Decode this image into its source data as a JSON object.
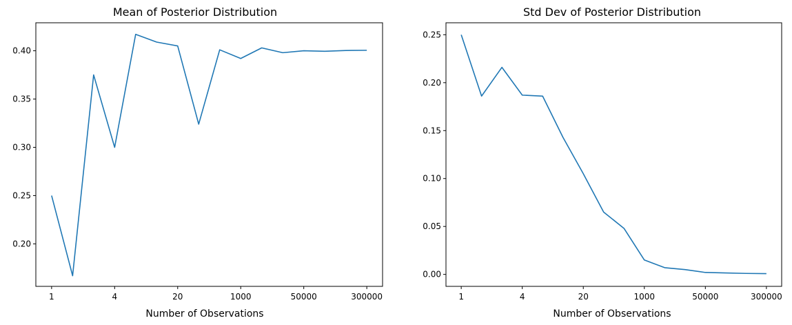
{
  "chart_data": [
    {
      "type": "line",
      "title": "Mean of Posterior Distribution",
      "xlabel": "Number of Observations",
      "ylabel": "",
      "x_index": [
        0,
        1,
        2,
        3,
        4,
        5,
        6,
        7,
        8,
        9,
        10,
        11,
        12,
        13,
        14,
        15
      ],
      "x_tick_positions": [
        0,
        3,
        6,
        9,
        12,
        15
      ],
      "x_tick_labels": [
        "1",
        "4",
        "20",
        "1000",
        "50000",
        "300000"
      ],
      "y_ticks": [
        0.2,
        0.25,
        0.3,
        0.35,
        0.4
      ],
      "y_tick_labels": [
        "0.20",
        "0.25",
        "0.30",
        "0.35",
        "0.40"
      ],
      "ylim": [
        0.156,
        0.429
      ],
      "xlim": [
        -0.75,
        15.75
      ],
      "grid": false,
      "series": [
        {
          "values": [
            0.25,
            0.167,
            0.375,
            0.3,
            0.417,
            0.409,
            0.405,
            0.324,
            0.401,
            0.392,
            0.403,
            0.398,
            0.4,
            0.3995,
            0.4003,
            0.4005
          ],
          "color": "#1f77b4"
        }
      ]
    },
    {
      "type": "line",
      "title": "Std Dev of Posterior Distribution",
      "xlabel": "Number of Observations",
      "ylabel": "",
      "x_index": [
        0,
        1,
        2,
        3,
        4,
        5,
        6,
        7,
        8,
        9,
        10,
        11,
        12,
        13,
        14,
        15
      ],
      "x_tick_positions": [
        0,
        3,
        6,
        9,
        12,
        15
      ],
      "x_tick_labels": [
        "1",
        "4",
        "20",
        "1000",
        "50000",
        "300000"
      ],
      "y_ticks": [
        0.0,
        0.05,
        0.1,
        0.15,
        0.2,
        0.25
      ],
      "y_tick_labels": [
        "0.00",
        "0.05",
        "0.10",
        "0.15",
        "0.20",
        "0.25"
      ],
      "ylim": [
        -0.0125,
        0.2625
      ],
      "xlim": [
        -0.75,
        15.75
      ],
      "grid": false,
      "series": [
        {
          "values": [
            0.25,
            0.186,
            0.216,
            0.187,
            0.186,
            0.143,
            0.105,
            0.065,
            0.048,
            0.015,
            0.007,
            0.005,
            0.002,
            0.0015,
            0.001,
            0.0008
          ],
          "color": "#1f77b4"
        }
      ]
    }
  ]
}
